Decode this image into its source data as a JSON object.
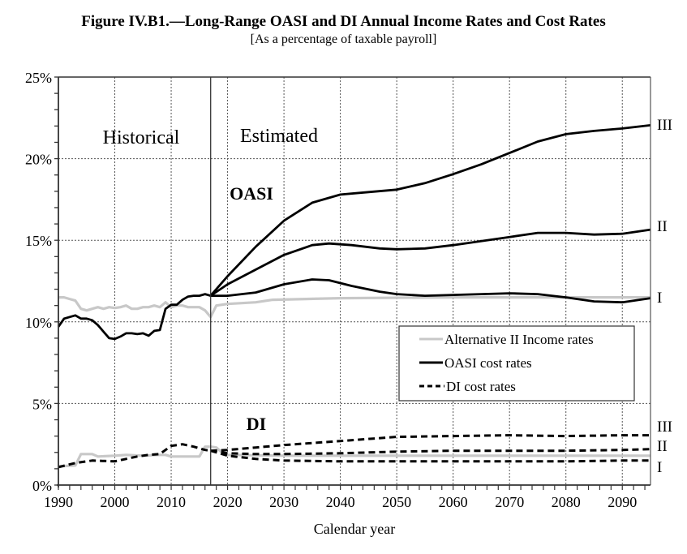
{
  "chart_data": {
    "type": "line",
    "title": "Figure IV.B1.—Long-Range OASI and DI Annual Income Rates and Cost Rates",
    "subtitle": "[As a percentage of taxable payroll]",
    "xlabel": "Calendar year",
    "ylabel": "",
    "xlim": [
      1990,
      2095
    ],
    "ylim": [
      0,
      25
    ],
    "x_ticks": [
      1990,
      2000,
      2010,
      2020,
      2030,
      2040,
      2050,
      2060,
      2070,
      2080,
      2090
    ],
    "y_ticks": [
      0,
      5,
      10,
      15,
      20,
      25
    ],
    "y_tick_labels": [
      "0%",
      "5%",
      "10%",
      "15%",
      "20%",
      "25%"
    ],
    "grid": true,
    "divider_year": 2017,
    "annotations": {
      "historical": "Historical",
      "estimated": "Estimated",
      "oasi": "OASI",
      "di": "DI",
      "oasi_alt_labels": [
        "III",
        "II",
        "I"
      ],
      "di_alt_labels": [
        "III",
        "II",
        "I"
      ]
    },
    "legend": {
      "placement": "center-right",
      "entries": [
        {
          "label": "Alternative II Income rates",
          "style": "gray-solid"
        },
        {
          "label": "OASI cost rates",
          "style": "black-solid"
        },
        {
          "label": "DI cost rates",
          "style": "black-dashed"
        }
      ]
    },
    "colors": {
      "income": "#c8c8c8",
      "cost": "#000000",
      "grid": "#555555"
    },
    "series": [
      {
        "name": "OASI Alternative II income rate",
        "style": "gray-solid",
        "x": [
          1990,
          1991,
          1992,
          1993,
          1994,
          1995,
          1996,
          1997,
          1998,
          1999,
          2000,
          2001,
          2002,
          2003,
          2004,
          2005,
          2006,
          2007,
          2008,
          2009,
          2010,
          2011,
          2012,
          2013,
          2014,
          2015,
          2016,
          2017,
          2018,
          2019,
          2020,
          2025,
          2028,
          2040,
          2060,
          2095
        ],
        "y": [
          11.5,
          11.5,
          11.4,
          11.3,
          10.8,
          10.7,
          10.8,
          10.9,
          10.8,
          10.9,
          10.85,
          10.9,
          11.0,
          10.8,
          10.8,
          10.9,
          10.9,
          11.0,
          10.9,
          11.2,
          10.9,
          11.0,
          11.0,
          10.9,
          10.9,
          10.9,
          10.7,
          10.3,
          11.0,
          11.05,
          11.1,
          11.2,
          11.35,
          11.45,
          11.5,
          11.5
        ]
      },
      {
        "name": "OASI cost rate historical",
        "style": "black-solid",
        "x": [
          1990,
          1991,
          1992,
          1993,
          1994,
          1995,
          1996,
          1997,
          1998,
          1999,
          2000,
          2001,
          2002,
          2003,
          2004,
          2005,
          2006,
          2007,
          2008,
          2009,
          2010,
          2011,
          2012,
          2013,
          2014,
          2015,
          2016,
          2017
        ],
        "y": [
          9.7,
          10.2,
          10.3,
          10.4,
          10.2,
          10.2,
          10.1,
          9.8,
          9.4,
          9.0,
          8.95,
          9.1,
          9.3,
          9.3,
          9.25,
          9.3,
          9.15,
          9.45,
          9.5,
          10.8,
          11.05,
          11.05,
          11.35,
          11.55,
          11.6,
          11.6,
          11.7,
          11.6
        ]
      },
      {
        "name": "OASI cost rate Alternative I",
        "style": "black-solid",
        "label": "I",
        "x": [
          2017,
          2020,
          2025,
          2030,
          2035,
          2038,
          2042,
          2047,
          2050,
          2055,
          2060,
          2065,
          2070,
          2075,
          2080,
          2085,
          2090,
          2095
        ],
        "y": [
          11.6,
          11.6,
          11.8,
          12.3,
          12.6,
          12.55,
          12.2,
          11.85,
          11.7,
          11.6,
          11.65,
          11.7,
          11.75,
          11.7,
          11.5,
          11.25,
          11.2,
          11.45
        ]
      },
      {
        "name": "OASI cost rate Alternative II",
        "style": "black-solid",
        "label": "II",
        "x": [
          2017,
          2020,
          2025,
          2030,
          2035,
          2038,
          2042,
          2047,
          2050,
          2055,
          2060,
          2065,
          2070,
          2075,
          2080,
          2085,
          2090,
          2095
        ],
        "y": [
          11.6,
          12.3,
          13.2,
          14.1,
          14.7,
          14.8,
          14.7,
          14.5,
          14.45,
          14.5,
          14.7,
          14.95,
          15.2,
          15.45,
          15.45,
          15.35,
          15.4,
          15.65
        ]
      },
      {
        "name": "OASI cost rate Alternative III",
        "style": "black-solid",
        "label": "III",
        "x": [
          2017,
          2020,
          2025,
          2030,
          2035,
          2040,
          2045,
          2050,
          2055,
          2060,
          2065,
          2070,
          2075,
          2080,
          2085,
          2090,
          2095
        ],
        "y": [
          11.6,
          12.8,
          14.6,
          16.2,
          17.3,
          17.8,
          17.95,
          18.1,
          18.5,
          19.05,
          19.65,
          20.35,
          21.05,
          21.5,
          21.7,
          21.85,
          22.05
        ]
      },
      {
        "name": "DI Alternative II income rate",
        "style": "gray-solid",
        "x": [
          1990,
          1993,
          1994,
          1996,
          1997,
          2000,
          2002,
          2005,
          2008,
          2009,
          2010,
          2012,
          2015,
          2016,
          2017,
          2018,
          2019,
          2020,
          2030,
          2095
        ],
        "y": [
          1.15,
          1.2,
          1.9,
          1.9,
          1.75,
          1.8,
          1.85,
          1.8,
          1.85,
          1.85,
          1.75,
          1.75,
          1.75,
          2.35,
          2.35,
          2.3,
          2.0,
          1.85,
          1.8,
          1.8
        ]
      },
      {
        "name": "DI cost rate historical",
        "style": "black-dashed",
        "x": [
          1990,
          1993,
          1996,
          2000,
          2002,
          2004,
          2006,
          2008,
          2010,
          2012,
          2014,
          2016,
          2017
        ],
        "y": [
          1.1,
          1.35,
          1.5,
          1.45,
          1.6,
          1.75,
          1.85,
          1.9,
          2.4,
          2.5,
          2.35,
          2.15,
          2.1
        ]
      },
      {
        "name": "DI cost rate Alternative I",
        "style": "black-dashed",
        "label": "I",
        "x": [
          2017,
          2020,
          2025,
          2030,
          2040,
          2050,
          2060,
          2070,
          2080,
          2090,
          2095
        ],
        "y": [
          2.1,
          1.8,
          1.6,
          1.5,
          1.45,
          1.45,
          1.45,
          1.45,
          1.45,
          1.5,
          1.5
        ]
      },
      {
        "name": "DI cost rate Alternative II",
        "style": "black-dashed",
        "label": "II",
        "x": [
          2017,
          2020,
          2025,
          2030,
          2040,
          2050,
          2060,
          2070,
          2080,
          2090,
          2095
        ],
        "y": [
          2.1,
          1.95,
          1.9,
          1.9,
          1.95,
          2.05,
          2.1,
          2.1,
          2.1,
          2.15,
          2.2
        ]
      },
      {
        "name": "DI cost rate Alternative III",
        "style": "black-dashed",
        "label": "III",
        "x": [
          2017,
          2020,
          2025,
          2030,
          2040,
          2050,
          2060,
          2070,
          2080,
          2090,
          2095
        ],
        "y": [
          2.1,
          2.15,
          2.3,
          2.45,
          2.7,
          2.95,
          3.0,
          3.05,
          3.0,
          3.05,
          3.05
        ]
      }
    ]
  }
}
